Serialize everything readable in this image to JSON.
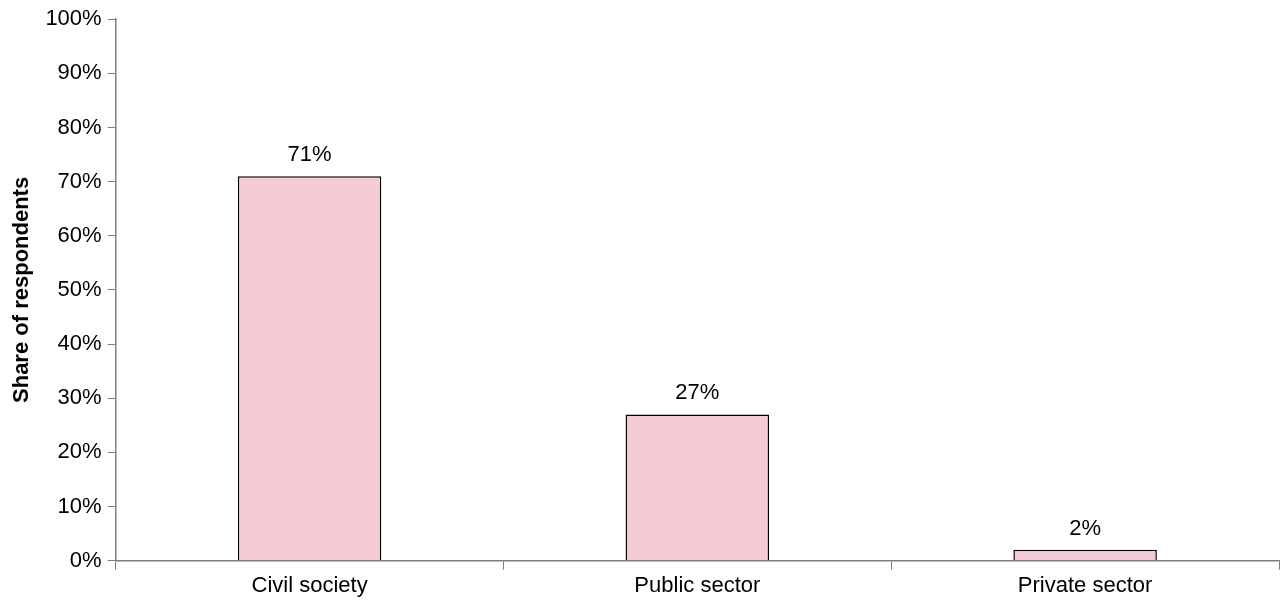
{
  "chart_data": {
    "type": "bar",
    "ylabel": "Share of respondents",
    "categories": [
      "Civil society",
      "Public sector",
      "Private sector"
    ],
    "values": [
      71,
      27,
      2
    ],
    "value_labels": [
      "71%",
      "27%",
      "2%"
    ],
    "color": "#f4cbd5",
    "ylim": [
      0,
      100
    ],
    "yticks": [
      {
        "value": 0,
        "label": "0%"
      },
      {
        "value": 10,
        "label": "10%"
      },
      {
        "value": 20,
        "label": "20%"
      },
      {
        "value": 30,
        "label": "30%"
      },
      {
        "value": 40,
        "label": "40%"
      },
      {
        "value": 50,
        "label": "50%"
      },
      {
        "value": 60,
        "label": "60%"
      },
      {
        "value": 70,
        "label": "70%"
      },
      {
        "value": 80,
        "label": "80%"
      },
      {
        "value": 90,
        "label": "90%"
      },
      {
        "value": 100,
        "label": "100%"
      }
    ]
  }
}
